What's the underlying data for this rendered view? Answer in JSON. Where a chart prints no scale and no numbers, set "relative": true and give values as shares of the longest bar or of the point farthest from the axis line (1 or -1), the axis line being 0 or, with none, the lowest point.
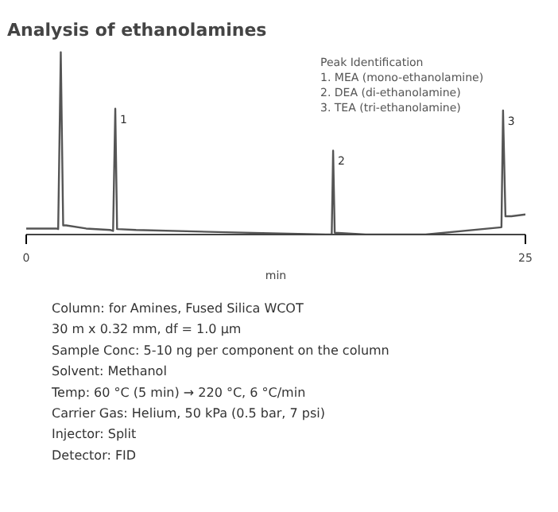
{
  "chart_data": {
    "type": "line",
    "title": "Analysis of ethanolamines",
    "xlabel": "min",
    "relative": true,
    "xlim": [
      0,
      25
    ],
    "xticks": [
      0,
      25
    ],
    "grid": false,
    "marker": "none",
    "line_style": "solid",
    "series": [
      {
        "color": "#555555",
        "x": [
          0,
          1.51,
          1.6,
          1.73,
          1.85,
          2.0,
          3.0,
          4.2,
          4.35,
          4.46,
          4.55,
          5.5,
          10,
          15.0,
          15.3,
          15.37,
          15.45,
          17,
          20,
          23.8,
          23.88,
          24.0,
          24.3,
          25.0
        ],
        "values": [
          0.033,
          0.033,
          0.03,
          1.0,
          0.05,
          0.05,
          0.033,
          0.025,
          0.02,
          0.69,
          0.03,
          0.025,
          0.0125,
          0.0,
          0.0,
          0.46,
          0.01,
          0.0,
          0.0,
          0.04,
          0.68,
          0.1,
          0.1,
          0.11
        ]
      }
    ],
    "annotations": [
      {
        "text": "1",
        "x": 4.46,
        "y": 0.69
      },
      {
        "text": "2",
        "x": 15.37,
        "y": 0.46
      },
      {
        "text": "3",
        "x": 23.88,
        "y": 0.68
      },
      "Peak Identification",
      "1.   MEA (mono-ethanolamine)",
      "2.   DEA (di-ethanolamine)",
      "3.   TEA (tri-ethanolamine)",
      "Column:              for Amines, Fused Silica WCOT",
      "                            30 m x 0.32 mm, df = 1.0 µm",
      "Sample Conc: 5-10 ng per component on the column",
      "Solvent:             Methanol",
      "Temp:                 60 °C (5 min) → 220 °C, 6 °C/min",
      "Carrier Gas:     Helium, 50 kPa (0.5 bar, 7 psi)",
      "Injector:            Split",
      "Detector:           FID"
    ]
  }
}
